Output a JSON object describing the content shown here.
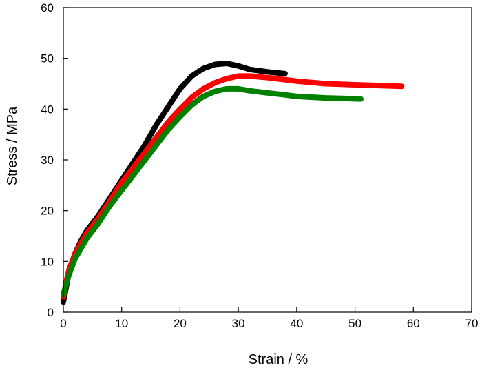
{
  "chart_data": {
    "type": "line",
    "title": "",
    "xlabel": "Strain / %",
    "ylabel": "Stress / MPa",
    "xlim": [
      0,
      70
    ],
    "ylim": [
      0,
      60
    ],
    "xticks": [
      0,
      10,
      20,
      30,
      40,
      50,
      60,
      70
    ],
    "yticks": [
      0,
      10,
      20,
      30,
      40,
      50,
      60
    ],
    "grid": false,
    "legend": "none",
    "series": [
      {
        "color": "#000000",
        "x": [
          0,
          0.5,
          1,
          2,
          3,
          4,
          5,
          6,
          8,
          10,
          12,
          14,
          16,
          18,
          20,
          22,
          24,
          26,
          28,
          30,
          32,
          34,
          36,
          38
        ],
        "y": [
          2,
          5,
          8,
          11.5,
          14,
          16,
          17.5,
          19,
          22.5,
          26,
          29.5,
          33,
          37,
          40.5,
          44,
          46.5,
          48,
          48.8,
          49,
          48.5,
          47.8,
          47.5,
          47.2,
          47
        ]
      },
      {
        "color": "#ff0000",
        "x": [
          0,
          0.5,
          1,
          2,
          3,
          4,
          5,
          6,
          8,
          10,
          12,
          14,
          16,
          18,
          20,
          22,
          24,
          26,
          28,
          30,
          32,
          35,
          38,
          40,
          45,
          50,
          55,
          58
        ],
        "y": [
          3,
          6,
          8.5,
          11.5,
          13.5,
          15.5,
          17,
          18.5,
          22,
          25.5,
          28.5,
          31.5,
          34.5,
          37.5,
          40,
          42.3,
          44,
          45.2,
          46,
          46.5,
          46.5,
          46.2,
          45.8,
          45.5,
          45,
          44.8,
          44.6,
          44.5
        ]
      },
      {
        "color": "#008000",
        "x": [
          0,
          0.5,
          1,
          2,
          3,
          4,
          5,
          6,
          8,
          10,
          12,
          14,
          16,
          18,
          20,
          22,
          24,
          26,
          28,
          30,
          32,
          35,
          38,
          40,
          45,
          51
        ],
        "y": [
          3.5,
          5.5,
          7.5,
          10.5,
          12.5,
          14.5,
          16,
          17.5,
          21,
          24,
          27,
          30,
          33,
          36,
          38.5,
          40.8,
          42.5,
          43.5,
          44,
          44,
          43.6,
          43.2,
          42.8,
          42.5,
          42.2,
          42
        ]
      }
    ]
  }
}
